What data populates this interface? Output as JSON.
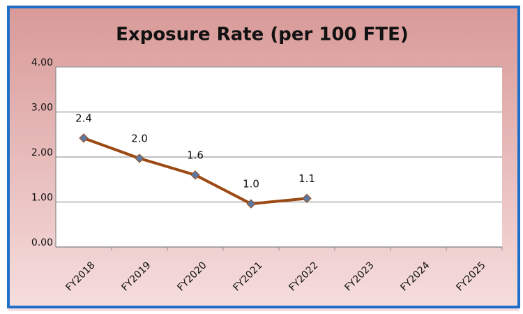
{
  "chart_data": {
    "type": "line",
    "title": "Exposure Rate (per 100 FTE)",
    "categories": [
      "FY2018",
      "FY2019",
      "FY2020",
      "FY2021",
      "FY2022",
      "FY2023",
      "FY2024",
      "FY2025"
    ],
    "series": [
      {
        "name": "Exposure Rate",
        "color": "#9c4a14",
        "values": [
          2.42,
          1.97,
          1.6,
          0.96,
          1.08,
          null,
          null,
          null
        ],
        "value_labels": [
          "2.4",
          "2.0",
          "1.6",
          "1.0",
          "1.1",
          null,
          null,
          null
        ]
      }
    ],
    "ylim": [
      0,
      4
    ],
    "yticks": [
      {
        "value": 0,
        "label": "0.00"
      },
      {
        "value": 1,
        "label": "1.00"
      },
      {
        "value": 2,
        "label": "2.00"
      },
      {
        "value": 3,
        "label": "3.00"
      },
      {
        "value": 4,
        "label": "4.00"
      }
    ],
    "grid": true
  }
}
